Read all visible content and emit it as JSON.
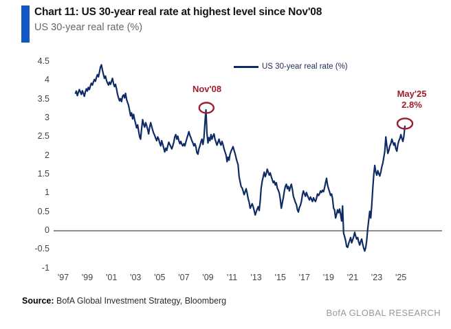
{
  "header": {
    "title": "Chart 11: US 30-year real rate at highest level since Nov'08",
    "subtitle": "US 30-year real rate (%)"
  },
  "legend": {
    "label": "US 30-year real rate (%)"
  },
  "annotations": {
    "nov08": "Nov'08",
    "may25_line1": "May'25",
    "may25_line2": "2.8%"
  },
  "footer": {
    "source_label": "Source:",
    "source_text": " BofA Global Investment Strategy, Bloomberg",
    "brand": "BofA GLOBAL RESEARCH"
  },
  "colors": {
    "accent_blue": "#1257c4",
    "line_navy": "#0e2b66",
    "annotation_red": "#a01d2e",
    "axis_text": "#3f434c",
    "zero_line": "#1a1a1a",
    "brand_gray": "#97989b"
  },
  "chart_data": {
    "type": "line",
    "title": "US 30-year real rate (%)",
    "legend_position": "top-center",
    "grid": false,
    "ylim": [
      -1,
      4.5
    ],
    "xlim_years": [
      1996.5,
      2026.2
    ],
    "x_start_year": 1998.0,
    "x_step_months": 1,
    "y_ticks": [
      "4.5",
      "4",
      "3.5",
      "3",
      "2.5",
      "2",
      "1.5",
      "1",
      "0.5",
      "0",
      "-0.5",
      "-1"
    ],
    "x_ticks": [
      {
        "label": "'97",
        "year": 1997
      },
      {
        "label": "'99",
        "year": 1999
      },
      {
        "label": "'01",
        "year": 2001
      },
      {
        "label": "'03",
        "year": 2003
      },
      {
        "label": "'05",
        "year": 2005
      },
      {
        "label": "'07",
        "year": 2007
      },
      {
        "label": "'09",
        "year": 2009
      },
      {
        "label": "'11",
        "year": 2011
      },
      {
        "label": "'13",
        "year": 2013
      },
      {
        "label": "'15",
        "year": 2015
      },
      {
        "label": "'17",
        "year": 2017
      },
      {
        "label": "'19",
        "year": 2019
      },
      {
        "label": "'21",
        "year": 2021
      },
      {
        "label": "'23",
        "year": 2023
      },
      {
        "label": "'25",
        "year": 2025
      }
    ],
    "highlights": [
      {
        "label": "Nov'08",
        "year": 2008.875,
        "value": 3.22
      },
      {
        "label": "May'25",
        "value_label": "2.8%",
        "year": 2025.333,
        "value": 2.8
      }
    ],
    "series": [
      {
        "name": "US 30-year real rate (%)",
        "monthly_values": [
          3.65,
          3.72,
          3.6,
          3.68,
          3.76,
          3.7,
          3.63,
          3.73,
          3.66,
          3.58,
          3.7,
          3.78,
          3.72,
          3.82,
          3.76,
          3.86,
          3.93,
          3.88,
          3.96,
          4.03,
          3.98,
          4.08,
          4.16,
          4.1,
          4.22,
          4.36,
          4.42,
          4.28,
          4.16,
          4.06,
          4.12,
          4.0,
          3.94,
          3.88,
          3.96,
          3.9,
          3.98,
          4.06,
          3.92,
          3.84,
          3.9,
          3.78,
          3.64,
          3.54,
          3.46,
          3.52,
          3.44,
          3.58,
          3.62,
          3.54,
          3.66,
          3.5,
          3.42,
          3.34,
          3.2,
          3.06,
          3.14,
          2.98,
          3.1,
          2.96,
          2.86,
          2.74,
          2.82,
          2.66,
          2.5,
          2.44,
          2.72,
          2.96,
          2.84,
          2.76,
          2.88,
          2.8,
          2.7,
          2.58,
          2.76,
          2.88,
          2.78,
          2.68,
          2.6,
          2.54,
          2.46,
          2.4,
          2.5,
          2.44,
          2.34,
          2.26,
          2.4,
          2.3,
          2.2,
          2.1,
          2.2,
          2.14,
          2.26,
          2.36,
          2.3,
          2.24,
          2.18,
          2.26,
          2.36,
          2.5,
          2.56,
          2.44,
          2.52,
          2.4,
          2.32,
          2.38,
          2.3,
          2.26,
          2.32,
          2.26,
          2.36,
          2.46,
          2.54,
          2.64,
          2.54,
          2.48,
          2.4,
          2.34,
          2.26,
          2.32,
          2.24,
          2.08,
          2.04,
          2.18,
          2.26,
          2.36,
          2.44,
          2.3,
          2.46,
          2.88,
          3.22,
          2.6,
          2.34,
          2.48,
          2.4,
          2.56,
          2.44,
          2.52,
          2.58,
          2.44,
          2.36,
          2.28,
          2.36,
          2.44,
          2.34,
          2.28,
          2.38,
          2.3,
          2.18,
          2.1,
          2.02,
          1.84,
          1.96,
          1.88,
          2.04,
          2.12,
          2.18,
          2.24,
          2.14,
          2.06,
          1.94,
          1.84,
          1.76,
          1.44,
          1.3,
          1.18,
          1.14,
          1.06,
          0.96,
          1.04,
          1.12,
          1.0,
          0.86,
          0.76,
          0.6,
          0.66,
          0.72,
          0.64,
          0.54,
          0.42,
          0.5,
          0.58,
          0.64,
          0.54,
          0.8,
          1.14,
          1.32,
          1.44,
          1.56,
          1.44,
          1.52,
          1.64,
          1.56,
          1.48,
          1.54,
          1.44,
          1.36,
          1.28,
          1.32,
          1.22,
          1.28,
          1.14,
          1.08,
          1.0,
          0.84,
          0.6,
          0.74,
          0.88,
          1.06,
          1.18,
          1.24,
          1.12,
          1.18,
          1.06,
          1.16,
          1.24,
          1.1,
          0.92,
          0.84,
          0.76,
          0.7,
          0.56,
          0.5,
          0.62,
          0.68,
          0.78,
          0.96,
          1.06,
          0.98,
          0.92,
          1.02,
          0.94,
          0.88,
          0.82,
          0.9,
          0.84,
          0.78,
          0.88,
          0.82,
          0.78,
          0.86,
          0.98,
          0.94,
          0.98,
          1.06,
          1.02,
          1.08,
          1.04,
          1.14,
          1.28,
          1.4,
          1.22,
          1.12,
          1.04,
          0.94,
          0.98,
          0.86,
          0.6,
          0.56,
          0.34,
          0.44,
          0.56,
          0.48,
          0.58,
          0.44,
          0.26,
          0.66,
          -0.06,
          -0.16,
          -0.26,
          -0.42,
          -0.44,
          -0.34,
          -0.26,
          -0.18,
          -0.32,
          -0.24,
          -0.16,
          -0.04,
          -0.14,
          -0.22,
          -0.18,
          -0.3,
          -0.38,
          -0.28,
          -0.22,
          -0.36,
          -0.46,
          -0.54,
          -0.44,
          -0.26,
          0.06,
          0.28,
          0.52,
          0.34,
          0.68,
          1.12,
          1.5,
          1.74,
          1.56,
          1.48,
          1.6,
          1.52,
          1.46,
          1.56,
          1.7,
          1.8,
          1.96,
          2.12,
          2.5,
          2.26,
          2.06,
          2.14,
          2.26,
          2.32,
          2.44,
          2.36,
          2.28,
          2.34,
          2.18,
          2.12,
          2.3,
          2.4,
          2.46,
          2.56,
          2.46,
          2.38,
          2.52,
          2.8
        ]
      }
    ]
  }
}
